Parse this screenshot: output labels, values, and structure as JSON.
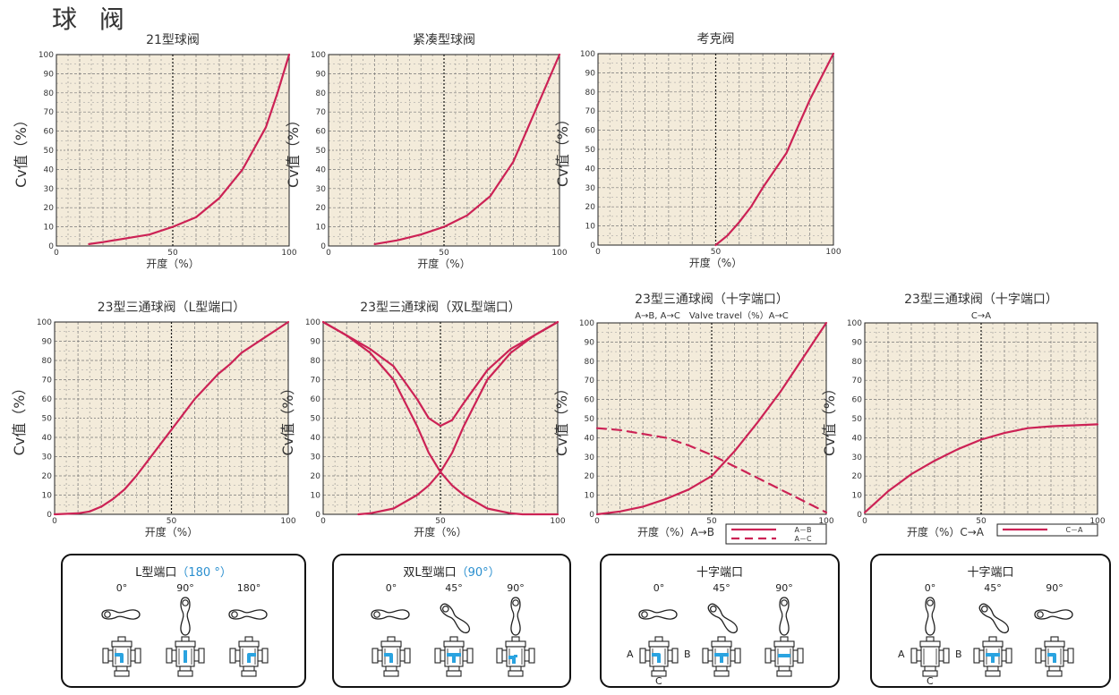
{
  "page_title": "球 阀",
  "colors": {
    "curve": "#cc2255",
    "plot_bg": "#f3ebda",
    "grid": "#777777",
    "flow": "#2aa3e0"
  },
  "x_axis_label": "开度（%）",
  "y_axis_label": "Cv值（%）",
  "chart_data": [
    {
      "id": "c21",
      "type": "line",
      "title": "21型球阀",
      "xlabel": "开度（%）",
      "ylabel": "Cv值（%）",
      "xlim": [
        0,
        100
      ],
      "ylim": [
        0,
        100
      ],
      "grid": true,
      "series": [
        {
          "style": "solid",
          "x": [
            14,
            20,
            30,
            40,
            50,
            60,
            70,
            80,
            90,
            95,
            100
          ],
          "y": [
            1,
            2,
            4,
            6,
            10,
            15,
            25,
            40,
            62,
            80,
            100
          ]
        }
      ]
    },
    {
      "id": "ccompact",
      "type": "line",
      "title": "紧凑型球阀",
      "xlabel": "开度（%）",
      "ylabel": "Cv值（%）",
      "xlim": [
        0,
        100
      ],
      "ylim": [
        0,
        100
      ],
      "grid": true,
      "series": [
        {
          "style": "solid",
          "x": [
            20,
            30,
            40,
            50,
            60,
            70,
            80,
            90,
            100
          ],
          "y": [
            1,
            3,
            6,
            10,
            16,
            26,
            44,
            72,
            100
          ]
        }
      ]
    },
    {
      "id": "ccock",
      "type": "line",
      "title": "考克阀",
      "xlabel": "开度（%）",
      "ylabel": "Cv值（%）",
      "xlim": [
        0,
        100
      ],
      "ylim": [
        0,
        100
      ],
      "grid": true,
      "series": [
        {
          "style": "solid",
          "x": [
            50,
            55,
            60,
            65,
            70,
            80,
            85,
            90,
            100
          ],
          "y": [
            0,
            5,
            12,
            20,
            30,
            48,
            62,
            76,
            100
          ]
        }
      ]
    },
    {
      "id": "cL",
      "type": "line",
      "title": "23型三通球阀（L型端口）",
      "xlabel": "开度（%）",
      "ylabel": "Cv值（%）",
      "xlim": [
        0,
        100
      ],
      "ylim": [
        0,
        100
      ],
      "grid": true,
      "series": [
        {
          "style": "solid",
          "x": [
            0,
            10,
            15,
            20,
            25,
            30,
            35,
            40,
            50,
            60,
            70,
            75,
            80,
            90,
            100
          ],
          "y": [
            0,
            0.5,
            1.5,
            4,
            8,
            13,
            20,
            28,
            44,
            60,
            73,
            78,
            84,
            92,
            100
          ]
        }
      ]
    },
    {
      "id": "cDL",
      "type": "line",
      "title": "23型三通球阀（双L型端口）",
      "xlabel": "开度（%）",
      "ylabel": "Cv值（%）",
      "xlim": [
        0,
        100
      ],
      "ylim": [
        0,
        100
      ],
      "grid": true,
      "series": [
        {
          "style": "solid",
          "x": [
            15,
            20,
            30,
            40,
            45,
            50,
            55,
            60,
            70,
            80,
            90,
            100
          ],
          "y": [
            0,
            0.5,
            3,
            10,
            15,
            22,
            32,
            46,
            70,
            84,
            93,
            100
          ]
        },
        {
          "style": "solid",
          "x": [
            0,
            10,
            20,
            30,
            40,
            45,
            50,
            55,
            60,
            70,
            80,
            85,
            100
          ],
          "y": [
            100,
            93,
            84,
            70,
            46,
            32,
            22,
            15,
            10,
            3,
            0.5,
            0,
            0
          ]
        },
        {
          "style": "solid",
          "x": [
            0,
            10,
            20,
            30,
            40,
            45,
            50,
            55,
            60,
            70,
            80,
            90,
            100
          ],
          "y": [
            100,
            93,
            86,
            77,
            60,
            50,
            46,
            49,
            58,
            75,
            86,
            93,
            100
          ]
        }
      ]
    },
    {
      "id": "cX1",
      "type": "line",
      "title": "23型三通球阀（十字端口）",
      "subtitle": "A→B, A→C　Valve travel（%）A→C",
      "xlabel": "开度（%）A→B",
      "ylabel": "Cv值（%）",
      "xlim": [
        0,
        100
      ],
      "ylim": [
        0,
        100
      ],
      "grid": true,
      "legend": {
        "position": "bottom-right",
        "items": [
          "A－B",
          "A－C"
        ]
      },
      "series": [
        {
          "name": "A－B",
          "style": "solid",
          "x": [
            0,
            10,
            20,
            30,
            40,
            50,
            60,
            70,
            80,
            90,
            100
          ],
          "y": [
            0,
            1.5,
            4,
            8,
            13,
            20,
            33,
            48,
            64,
            82,
            100
          ]
        },
        {
          "name": "A－C",
          "style": "dashed",
          "x": [
            0,
            10,
            20,
            30,
            40,
            50,
            60,
            70,
            80,
            90,
            100
          ],
          "y": [
            45,
            44,
            42,
            40,
            36,
            31,
            25,
            19,
            13,
            7,
            1
          ]
        }
      ]
    },
    {
      "id": "cX2",
      "type": "line",
      "title": "23型三通球阀（十字端口）",
      "subtitle": "C→A",
      "xlabel": "开度（%）C→A",
      "ylabel": "Cv值（%）",
      "xlim": [
        0,
        100
      ],
      "ylim": [
        0,
        100
      ],
      "grid": true,
      "legend": {
        "position": "bottom-right",
        "items": [
          "C－A"
        ]
      },
      "series": [
        {
          "name": "C－A",
          "style": "solid",
          "x": [
            0,
            10,
            20,
            30,
            40,
            50,
            60,
            70,
            80,
            90,
            100
          ],
          "y": [
            1,
            12,
            21,
            28,
            34,
            39,
            42.5,
            45,
            46,
            46.5,
            47
          ]
        }
      ]
    }
  ],
  "position_panels": [
    {
      "title": "L型端口",
      "highlight": "（180 °）",
      "angles": [
        "0°",
        "90°",
        "180°"
      ],
      "ports": null
    },
    {
      "title": "双L型端口",
      "highlight": "（90°）",
      "angles": [
        "0°",
        "45°",
        "90°"
      ],
      "ports": null
    },
    {
      "title": "十字端口",
      "highlight": "",
      "angles": [
        "0°",
        "45°",
        "90°"
      ],
      "ports": {
        "a": "A",
        "b": "B",
        "c": "C"
      }
    },
    {
      "title": "十字端口",
      "highlight": "",
      "angles": [
        "0°",
        "45°",
        "90°"
      ],
      "ports": {
        "a": "A",
        "b": "B",
        "c": "C"
      }
    }
  ]
}
